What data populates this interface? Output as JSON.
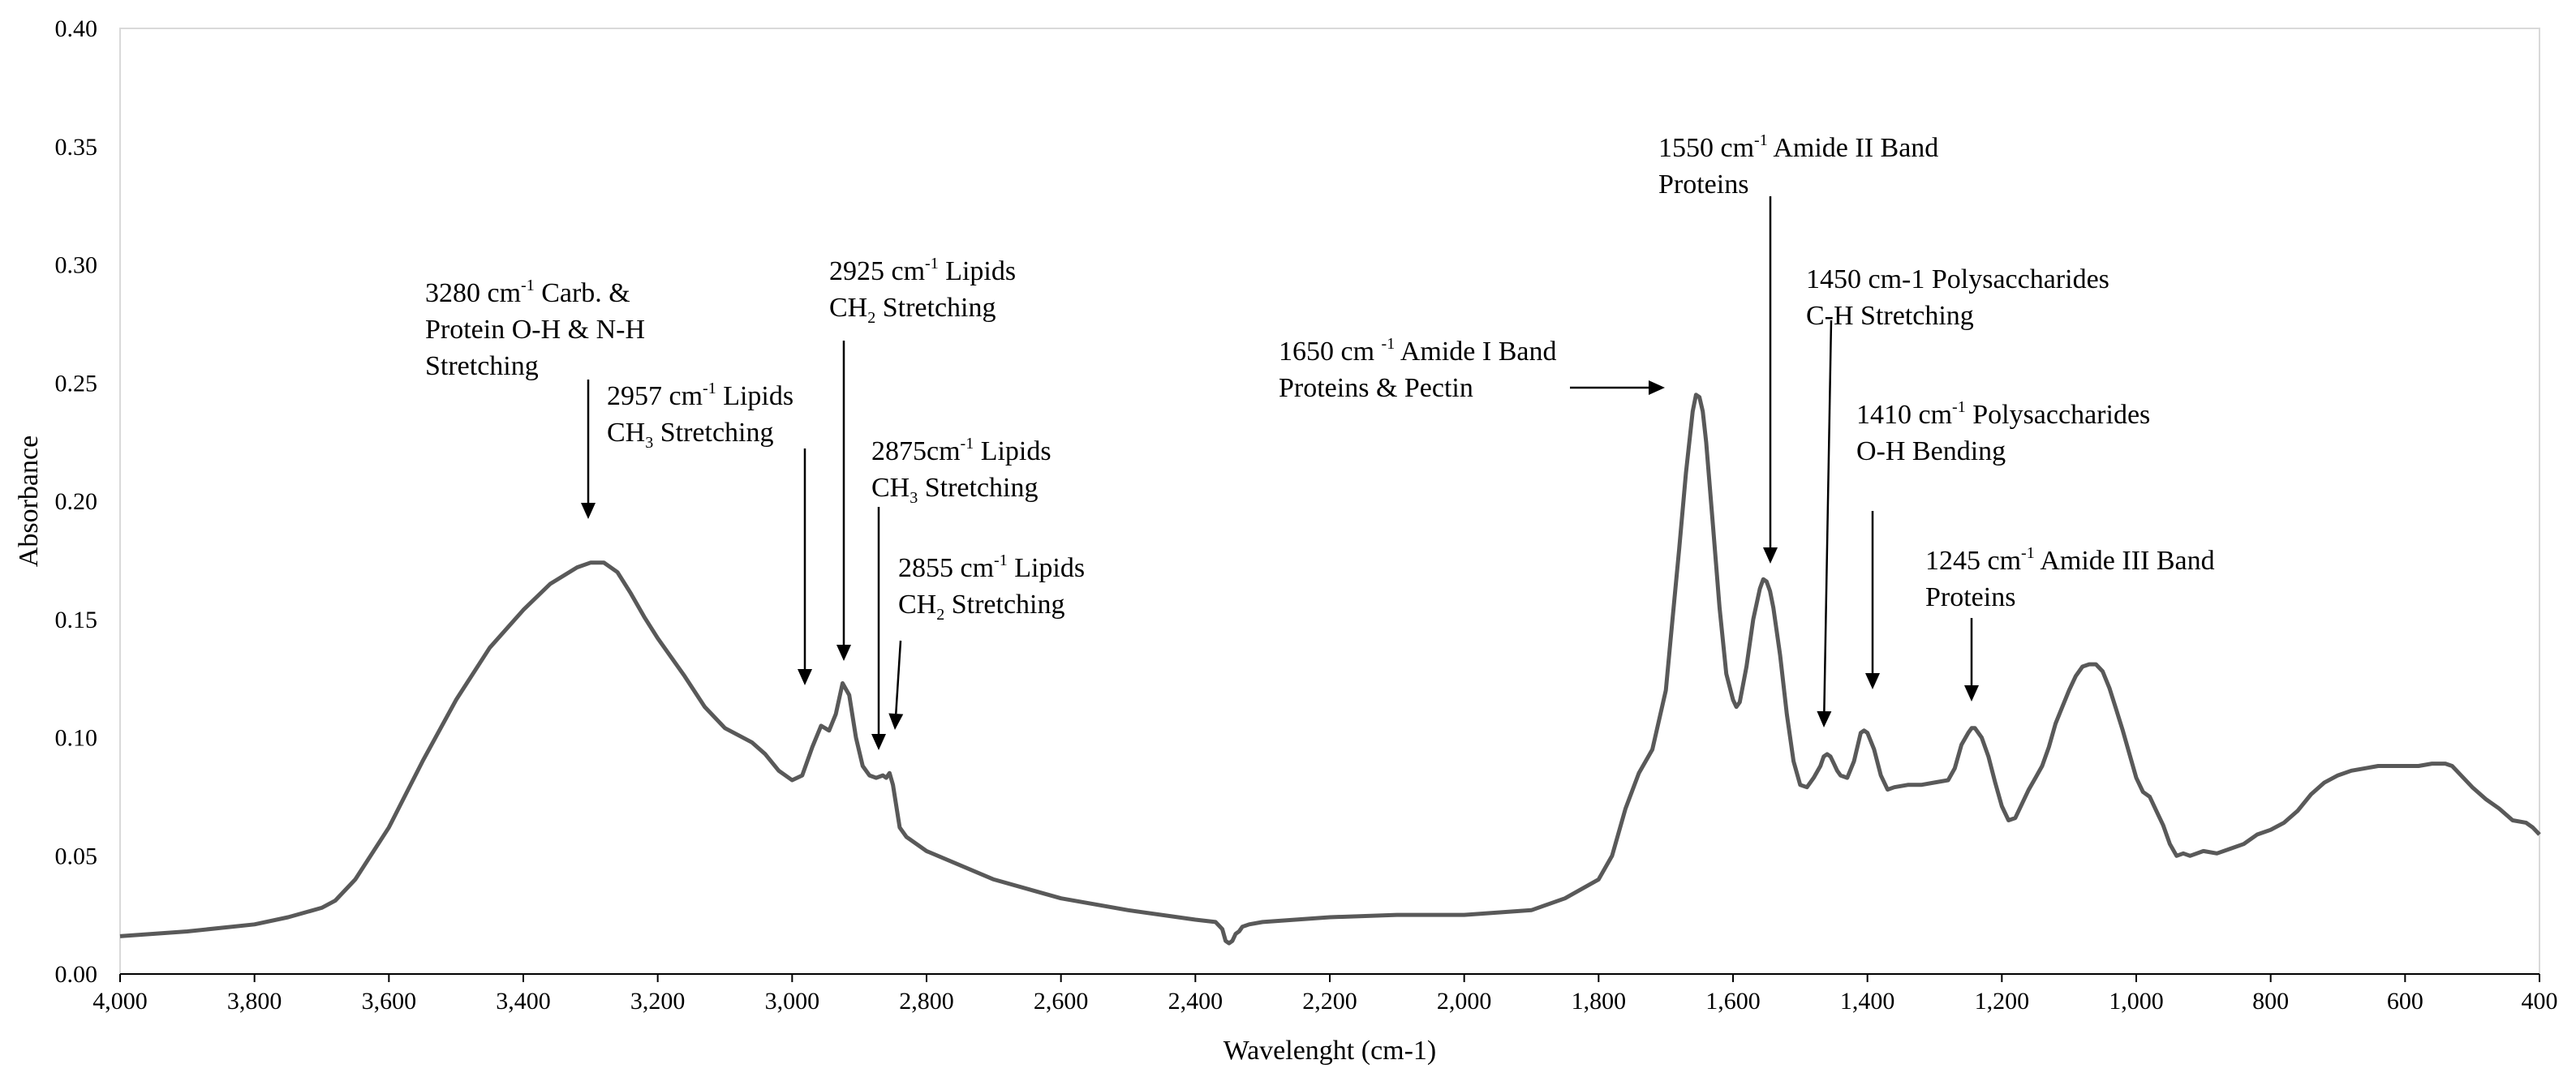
{
  "chart_data": {
    "type": "line",
    "title": "",
    "xlabel": "Wavelenght (cm-1)",
    "ylabel": "Absorbance",
    "xlim": [
      4000,
      400
    ],
    "ylim": [
      0,
      0.4
    ],
    "x_reversed": true,
    "grid": false,
    "x_ticks": [
      "4,000",
      "3,800",
      "3,600",
      "3,400",
      "3,200",
      "3,000",
      "2,800",
      "2,600",
      "2,400",
      "2,200",
      "2,000",
      "1,800",
      "1,600",
      "1,400",
      "1,200",
      "1,000",
      "800",
      "600",
      "400"
    ],
    "y_ticks": [
      "0.00",
      "0.05",
      "0.10",
      "0.15",
      "0.20",
      "0.25",
      "0.30",
      "0.35",
      "0.40"
    ],
    "colors": {
      "line": "#595959",
      "axis": "#000000",
      "frame": "#d9d9d9"
    },
    "series": [
      {
        "name": "Absorbance",
        "x": [
          4000,
          3900,
          3800,
          3750,
          3700,
          3680,
          3650,
          3600,
          3550,
          3500,
          3450,
          3400,
          3360,
          3320,
          3300,
          3280,
          3260,
          3240,
          3220,
          3200,
          3160,
          3130,
          3100,
          3080,
          3060,
          3040,
          3020,
          3000,
          2985,
          2970,
          2957,
          2945,
          2935,
          2925,
          2915,
          2905,
          2895,
          2885,
          2875,
          2865,
          2860,
          2855,
          2850,
          2840,
          2830,
          2800,
          2700,
          2600,
          2500,
          2400,
          2370,
          2360,
          2355,
          2350,
          2345,
          2340,
          2335,
          2330,
          2320,
          2300,
          2200,
          2100,
          2000,
          1900,
          1850,
          1800,
          1780,
          1760,
          1740,
          1720,
          1700,
          1690,
          1680,
          1670,
          1660,
          1655,
          1650,
          1645,
          1640,
          1630,
          1620,
          1610,
          1600,
          1595,
          1590,
          1580,
          1570,
          1560,
          1555,
          1550,
          1545,
          1540,
          1530,
          1520,
          1510,
          1500,
          1490,
          1480,
          1470,
          1465,
          1460,
          1455,
          1450,
          1445,
          1440,
          1430,
          1420,
          1410,
          1405,
          1400,
          1390,
          1380,
          1370,
          1360,
          1340,
          1320,
          1300,
          1280,
          1270,
          1260,
          1250,
          1245,
          1240,
          1230,
          1220,
          1210,
          1200,
          1190,
          1180,
          1170,
          1160,
          1150,
          1140,
          1130,
          1120,
          1110,
          1100,
          1090,
          1080,
          1070,
          1060,
          1050,
          1040,
          1030,
          1020,
          1010,
          1000,
          990,
          980,
          970,
          960,
          950,
          940,
          930,
          920,
          900,
          880,
          860,
          840,
          820,
          800,
          780,
          760,
          740,
          720,
          700,
          680,
          660,
          640,
          620,
          600,
          580,
          560,
          540,
          530,
          520,
          500,
          480,
          460,
          440,
          420,
          410,
          400
        ],
        "values": [
          0.016,
          0.018,
          0.021,
          0.024,
          0.028,
          0.031,
          0.04,
          0.062,
          0.09,
          0.116,
          0.138,
          0.154,
          0.165,
          0.172,
          0.174,
          0.174,
          0.17,
          0.161,
          0.151,
          0.142,
          0.126,
          0.113,
          0.104,
          0.101,
          0.098,
          0.093,
          0.086,
          0.082,
          0.084,
          0.096,
          0.105,
          0.103,
          0.11,
          0.123,
          0.118,
          0.1,
          0.088,
          0.084,
          0.083,
          0.084,
          0.083,
          0.085,
          0.08,
          0.062,
          0.058,
          0.052,
          0.04,
          0.032,
          0.027,
          0.023,
          0.022,
          0.019,
          0.014,
          0.013,
          0.014,
          0.017,
          0.018,
          0.02,
          0.021,
          0.022,
          0.024,
          0.025,
          0.025,
          0.027,
          0.032,
          0.04,
          0.05,
          0.07,
          0.085,
          0.095,
          0.12,
          0.15,
          0.18,
          0.212,
          0.238,
          0.245,
          0.244,
          0.238,
          0.225,
          0.19,
          0.155,
          0.127,
          0.116,
          0.113,
          0.115,
          0.13,
          0.15,
          0.163,
          0.167,
          0.166,
          0.162,
          0.155,
          0.135,
          0.11,
          0.09,
          0.08,
          0.079,
          0.083,
          0.088,
          0.092,
          0.093,
          0.092,
          0.089,
          0.086,
          0.084,
          0.083,
          0.09,
          0.102,
          0.103,
          0.102,
          0.095,
          0.084,
          0.078,
          0.079,
          0.08,
          0.08,
          0.081,
          0.082,
          0.087,
          0.097,
          0.102,
          0.104,
          0.104,
          0.1,
          0.092,
          0.081,
          0.071,
          0.065,
          0.066,
          0.072,
          0.078,
          0.083,
          0.088,
          0.096,
          0.106,
          0.113,
          0.12,
          0.126,
          0.13,
          0.131,
          0.131,
          0.128,
          0.121,
          0.112,
          0.103,
          0.093,
          0.083,
          0.077,
          0.075,
          0.069,
          0.063,
          0.055,
          0.05,
          0.051,
          0.05,
          0.052,
          0.051,
          0.053,
          0.055,
          0.059,
          0.061,
          0.064,
          0.069,
          0.076,
          0.081,
          0.084,
          0.086,
          0.087,
          0.088,
          0.088,
          0.088,
          0.088,
          0.089,
          0.089,
          0.088,
          0.085,
          0.079,
          0.074,
          0.07,
          0.065,
          0.064,
          0.062,
          0.059
        ]
      }
    ],
    "annotations": [
      {
        "lines": [
          {
            "pre": "3280 cm",
            "sup": "-1",
            "post": " Carb. &"
          },
          {
            "pre": "Protein O-H & N-H"
          },
          {
            "pre": "Stretching"
          }
        ]
      },
      {
        "lines": [
          {
            "pre": "2957 cm",
            "sup": "-1",
            "post": " Lipids"
          },
          {
            "pre": "CH",
            "sub": "3",
            "post": " Stretching"
          }
        ]
      },
      {
        "lines": [
          {
            "pre": "2925 cm",
            "sup": "-1",
            "post": " Lipids"
          },
          {
            "pre": "CH",
            "sub": "2",
            "post": " Stretching"
          }
        ]
      },
      {
        "lines": [
          {
            "pre": "2875cm",
            "sup": "-1",
            "post": " Lipids"
          },
          {
            "pre": "CH",
            "sub": "3",
            "post": " Stretching"
          }
        ]
      },
      {
        "lines": [
          {
            "pre": "2855 cm",
            "sup": "-1",
            "post": " Lipids"
          },
          {
            "pre": "CH",
            "sub": "2",
            "post": " Stretching"
          }
        ]
      },
      {
        "lines": [
          {
            "pre": "1650 cm ",
            "sup": "-1",
            "post": " Amide I Band"
          },
          {
            "pre": "Proteins & Pectin"
          }
        ]
      },
      {
        "lines": [
          {
            "pre": "1550 cm",
            "sup": "-1",
            "post": "  Amide II Band"
          },
          {
            "pre": "Proteins"
          }
        ]
      },
      {
        "lines": [
          {
            "pre": "1450 cm-1 Polysaccharides"
          },
          {
            "pre": "C-H Stretching"
          }
        ]
      },
      {
        "lines": [
          {
            "pre": "1410 cm",
            "sup": "-1",
            "post": " Polysaccharides"
          },
          {
            "pre": "O-H Bending"
          }
        ]
      },
      {
        "lines": [
          {
            "pre": "1245 cm",
            "sup": "-1",
            "post": "  Amide III Band"
          },
          {
            "pre": "Proteins"
          }
        ]
      }
    ]
  }
}
